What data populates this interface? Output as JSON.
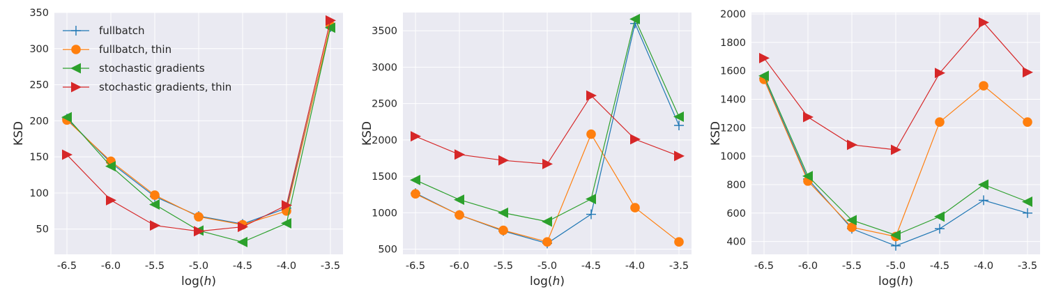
{
  "colors": {
    "background": "#eaeaf2",
    "grid": "#ffffff",
    "fullbatch": "#1f77b4",
    "fullbatch_thin": "#ff7f0e",
    "stochastic": "#2ca02c",
    "stochastic_thin": "#d62728"
  },
  "chart_data": [
    {
      "type": "line",
      "xlabel": "log(h)",
      "ylabel": "KSD",
      "x": [
        -6.5,
        -6.0,
        -5.5,
        -5.0,
        -4.5,
        -4.0,
        -3.5
      ],
      "xticks": [
        "-6.5",
        "-6.0",
        "-5.5",
        "-5.0",
        "-4.5",
        "-4.0",
        "-3.5"
      ],
      "ylim": [
        15,
        350
      ],
      "yticks": [
        50,
        100,
        150,
        200,
        250,
        300,
        350
      ],
      "grid": true,
      "legend": "top-left",
      "series": [
        {
          "name": "fullbatch",
          "marker": "plus",
          "color": "#1f77b4",
          "values": [
            203,
            142,
            95,
            68,
            57,
            79,
            330
          ]
        },
        {
          "name": "fullbatch, thin",
          "marker": "circle",
          "color": "#ff7f0e",
          "values": [
            201,
            144,
            97,
            67,
            56,
            75,
            332
          ]
        },
        {
          "name": "stochastic gradients",
          "marker": "triangle-left",
          "color": "#2ca02c",
          "values": [
            205,
            137,
            84,
            48,
            32,
            58,
            329
          ]
        },
        {
          "name": "stochastic gradients, thin",
          "marker": "triangle-right",
          "color": "#d62728",
          "values": [
            153,
            90,
            55,
            47,
            53,
            83,
            339
          ]
        }
      ]
    },
    {
      "type": "line",
      "xlabel": "log(h)",
      "ylabel": "KSD",
      "x": [
        -6.5,
        -6.0,
        -5.5,
        -5.0,
        -4.5,
        -4.0,
        -3.5
      ],
      "xticks": [
        "-6.5",
        "-6.0",
        "-5.5",
        "-5.0",
        "-4.5",
        "-4.0",
        "-3.5"
      ],
      "ylim": [
        430,
        3750
      ],
      "yticks": [
        500,
        1000,
        1500,
        2000,
        2500,
        3000,
        3500
      ],
      "grid": true,
      "series": [
        {
          "name": "fullbatch",
          "marker": "plus",
          "color": "#1f77b4",
          "values": [
            1270,
            970,
            750,
            580,
            980,
            3600,
            2200
          ]
        },
        {
          "name": "fullbatch, thin",
          "marker": "circle",
          "color": "#ff7f0e",
          "values": [
            1260,
            970,
            760,
            600,
            2080,
            1070,
            600
          ]
        },
        {
          "name": "stochastic gradients",
          "marker": "triangle-left",
          "color": "#2ca02c",
          "values": [
            1450,
            1180,
            1000,
            880,
            1190,
            3660,
            2320
          ]
        },
        {
          "name": "stochastic gradients, thin",
          "marker": "triangle-right",
          "color": "#d62728",
          "values": [
            2050,
            1800,
            1720,
            1670,
            2610,
            2010,
            1780
          ]
        }
      ]
    },
    {
      "type": "line",
      "xlabel": "log(h)",
      "ylabel": "KSD",
      "x": [
        -6.5,
        -6.0,
        -5.5,
        -5.0,
        -4.5,
        -4.0,
        -3.5
      ],
      "xticks": [
        "-6.5",
        "-6.0",
        "-5.5",
        "-5.0",
        "-4.5",
        "-4.0",
        "-3.5"
      ],
      "ylim": [
        310,
        2010
      ],
      "yticks": [
        400,
        600,
        800,
        1000,
        1200,
        1400,
        1600,
        1800,
        2000
      ],
      "grid": true,
      "series": [
        {
          "name": "fullbatch",
          "marker": "plus",
          "color": "#1f77b4",
          "values": [
            1550,
            840,
            490,
            370,
            490,
            690,
            600
          ]
        },
        {
          "name": "fullbatch, thin",
          "marker": "circle",
          "color": "#ff7f0e",
          "values": [
            1540,
            825,
            500,
            435,
            1240,
            1495,
            1240
          ]
        },
        {
          "name": "stochastic gradients",
          "marker": "triangle-left",
          "color": "#2ca02c",
          "values": [
            1565,
            860,
            550,
            445,
            575,
            800,
            680
          ]
        },
        {
          "name": "stochastic gradients, thin",
          "marker": "triangle-right",
          "color": "#d62728",
          "values": [
            1690,
            1275,
            1080,
            1045,
            1585,
            1940,
            1590
          ]
        }
      ]
    }
  ]
}
